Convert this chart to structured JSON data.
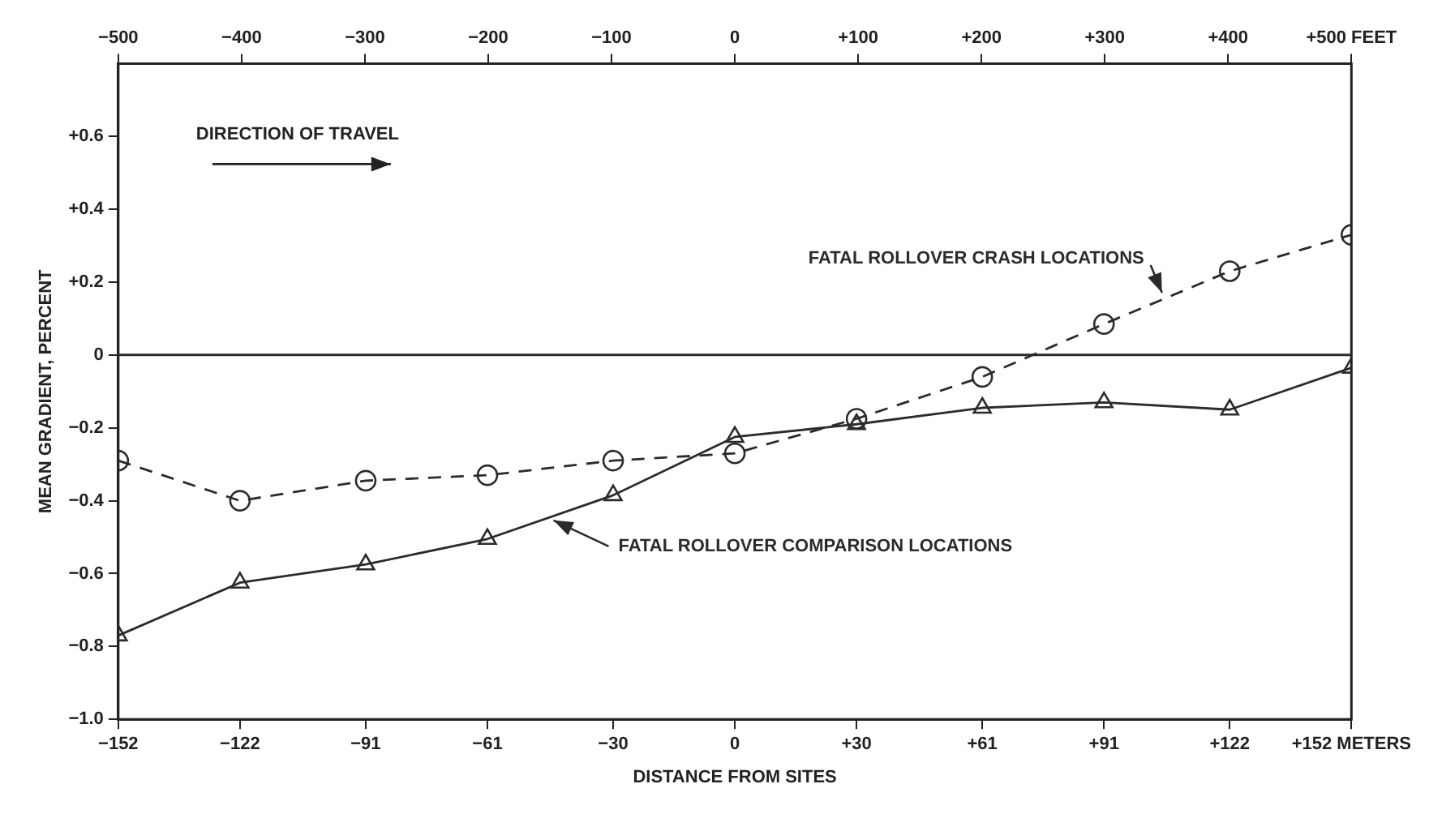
{
  "chart_data": {
    "type": "line",
    "xlabel": "DISTANCE FROM SITES",
    "ylabel": "MEAN GRADIENT, PERCENT",
    "annotations": [
      "DIRECTION OF TRAVEL"
    ],
    "x": [
      -152,
      -122,
      -91,
      -61,
      -30,
      0,
      30,
      61,
      91,
      122,
      152
    ],
    "series": [
      {
        "name": "FATAL ROLLOVER CRASH LOCATIONS",
        "color": "#2b2b2b",
        "marker": "circle",
        "line_style": "dashed",
        "values": [
          -0.29,
          -0.4,
          -0.345,
          -0.33,
          -0.29,
          -0.27,
          -0.175,
          -0.06,
          0.085,
          0.23,
          0.33
        ]
      },
      {
        "name": "FATAL ROLLOVER COMPARISON LOCATIONS",
        "color": "#2b2b2b",
        "marker": "triangle",
        "line_style": "solid",
        "values": [
          -0.77,
          -0.625,
          -0.575,
          -0.505,
          -0.385,
          -0.225,
          -0.19,
          -0.145,
          -0.13,
          -0.15,
          -0.035
        ]
      }
    ],
    "xlim": [
      -152,
      152
    ],
    "xticks": [
      {
        "value": -152,
        "label": "−152"
      },
      {
        "value": -122,
        "label": "−122"
      },
      {
        "value": -91,
        "label": "−91"
      },
      {
        "value": -61,
        "label": "−61"
      },
      {
        "value": -30,
        "label": "−30"
      },
      0,
      {
        "value": 30,
        "label": "+30"
      },
      {
        "value": 61,
        "label": "+61"
      },
      {
        "value": 91,
        "label": "+91"
      },
      {
        "value": 122,
        "label": "+122"
      },
      {
        "value": 152,
        "label": "+152 METERS"
      }
    ],
    "x2lim": [
      -500,
      500
    ],
    "x2ticks": [
      {
        "value": -500,
        "label": "−500"
      },
      {
        "value": -400,
        "label": "−400"
      },
      {
        "value": -300,
        "label": "−300"
      },
      {
        "value": -200,
        "label": "−200"
      },
      {
        "value": -100,
        "label": "−100"
      },
      0,
      {
        "value": 100,
        "label": "+100"
      },
      {
        "value": 200,
        "label": "+200"
      },
      {
        "value": 300,
        "label": "+300"
      },
      {
        "value": 400,
        "label": "+400"
      },
      {
        "value": 500,
        "label": "+500 FEET"
      }
    ],
    "ylim": [
      -1.0,
      0.8
    ],
    "yticks": [
      {
        "value": -1.0,
        "label": "−1.0"
      },
      {
        "value": -0.8,
        "label": "−0.8"
      },
      {
        "value": -0.6,
        "label": "−0.6"
      },
      {
        "value": -0.4,
        "label": "−0.4"
      },
      {
        "value": -0.2,
        "label": "−0.2"
      },
      0,
      {
        "value": 0.2,
        "label": "+0.2"
      },
      {
        "value": 0.4,
        "label": "+0.4"
      },
      {
        "value": 0.6,
        "label": "+0.6"
      }
    ],
    "ref_lines": [
      {
        "axis": "y",
        "value": 0,
        "color": "#2b2b2b",
        "line_style": "solid"
      }
    ],
    "grid": false,
    "legend": false
  }
}
